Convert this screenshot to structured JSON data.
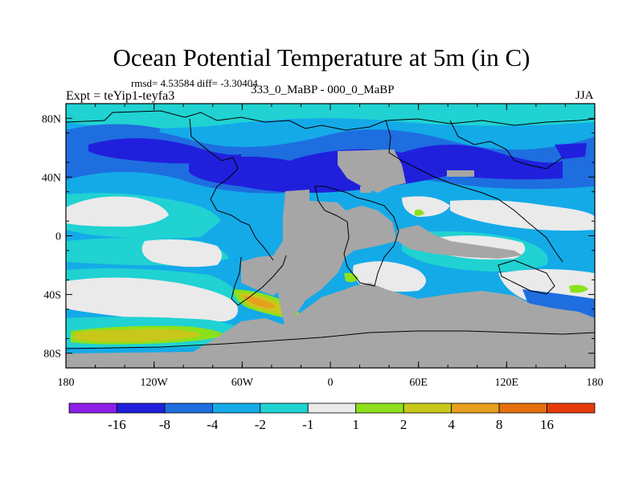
{
  "title": "Ocean Potential Temperature at 5m (in C)",
  "stats": "rmsd= 4.53584 diff= -3.30404",
  "left_string": "Expt = teYip1-teyfa3",
  "center_string": "333_0_MaBP - 000_0_MaBP",
  "right_string": "JJA",
  "chart_data": {
    "type": "heatmap",
    "title": "Ocean Potential Temperature at 5m (in C)",
    "variable": "ocean potential temperature difference at 5m (deg C)",
    "season": "JJA",
    "experiment": "teYip1-teyfa3",
    "comparison": "333_0_MaBP - 000_0_MaBP",
    "rmsd": 4.53584,
    "mean_diff": -3.30404,
    "xlim": [
      -180,
      180
    ],
    "ylim": [
      -90,
      90
    ],
    "x_ticks": [
      {
        "value": -180,
        "label": "180"
      },
      {
        "value": -120,
        "label": "120W"
      },
      {
        "value": -60,
        "label": "60W"
      },
      {
        "value": 0,
        "label": "0"
      },
      {
        "value": 60,
        "label": "60E"
      },
      {
        "value": 120,
        "label": "120E"
      },
      {
        "value": 180,
        "label": "180"
      }
    ],
    "y_ticks": [
      {
        "value": 80,
        "label": "80N"
      },
      {
        "value": 40,
        "label": "40N"
      },
      {
        "value": 0,
        "label": "0"
      },
      {
        "value": -40,
        "label": "40S"
      },
      {
        "value": -80,
        "label": "80S"
      }
    ],
    "colorbar": {
      "levels": [
        -16,
        -8,
        -4,
        -2,
        -1,
        1,
        2,
        4,
        8,
        16
      ],
      "labels": [
        "-16",
        "-8",
        "-4",
        "-2",
        "-1",
        "1",
        "2",
        "4",
        "8",
        "16"
      ],
      "colors": [
        "#8c1fe6",
        "#2020dc",
        "#1e6ee0",
        "#14aae8",
        "#20d2d2",
        "#eaeaea",
        "#8ce01c",
        "#c8c81a",
        "#e6a01e",
        "#e6700e",
        "#e63c0c"
      ]
    },
    "colors": {
      "land": "#a6a6a6",
      "coast": "#000000"
    }
  }
}
